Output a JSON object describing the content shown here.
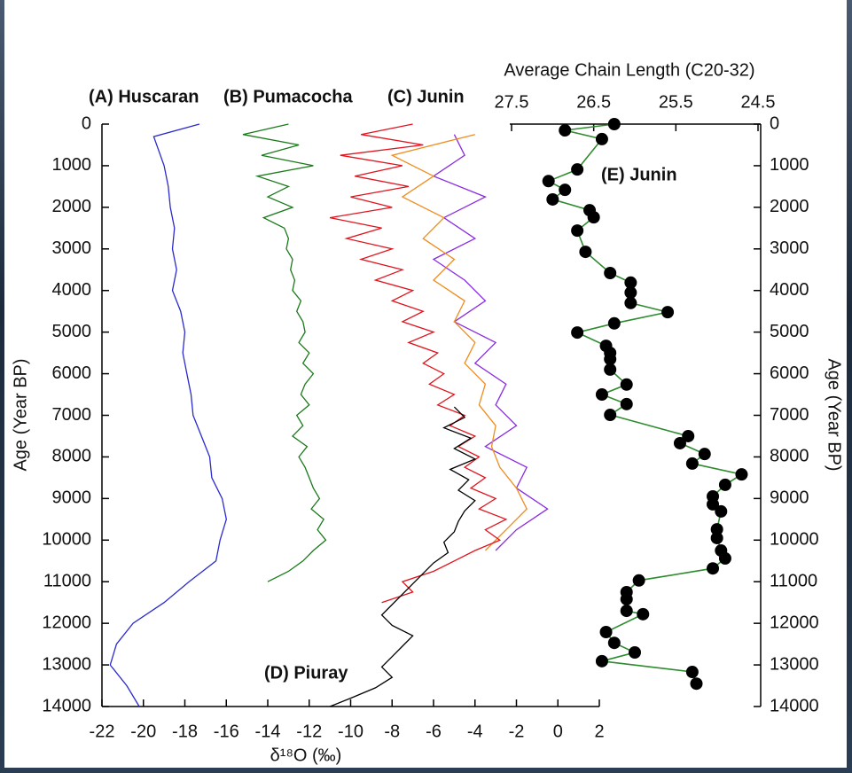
{
  "chart_data": {
    "type": "line",
    "xlabel": "δ¹⁸O (‰)",
    "ylabel": "Age (Year BP)",
    "y2label": "Age (Year BP)",
    "x2label": "Average Chain Length (C20-32)",
    "xlim": [
      -22,
      2
    ],
    "xticks": [
      -22,
      -20,
      -18,
      -16,
      -14,
      -12,
      -10,
      -8,
      -6,
      -4,
      -2,
      0,
      2
    ],
    "x2lim": [
      27.5,
      24.5
    ],
    "x2ticks": [
      27.5,
      26.5,
      25.5,
      24.5
    ],
    "ylim": [
      0,
      14000
    ],
    "yticks": [
      0,
      1000,
      2000,
      3000,
      4000,
      5000,
      6000,
      7000,
      8000,
      9000,
      10000,
      11000,
      12000,
      13000,
      14000
    ],
    "y_reversed": true,
    "series": [
      {
        "name": "(A) Huscaran",
        "color": "#2a2acc",
        "ages": [
          0,
          300,
          1000,
          1500,
          2000,
          2500,
          3000,
          3500,
          4000,
          4500,
          5000,
          5500,
          6000,
          6500,
          7000,
          7500,
          8000,
          8500,
          9000,
          9500,
          10000,
          10500,
          11000,
          11500,
          12000,
          12500,
          13000,
          13500,
          14000
        ],
        "values": [
          -17.3,
          -19.5,
          -19.0,
          -18.8,
          -18.7,
          -18.5,
          -18.6,
          -18.4,
          -18.6,
          -18.2,
          -18.0,
          -18.1,
          -17.9,
          -17.7,
          -17.6,
          -17.2,
          -16.8,
          -16.7,
          -16.2,
          -16.0,
          -16.3,
          -16.5,
          -17.8,
          -19.0,
          -20.5,
          -21.3,
          -21.6,
          -20.8,
          -20.2
        ]
      },
      {
        "name": "(B) Pumacocha",
        "color": "#1a7a1a",
        "ages": [
          0,
          250,
          500,
          750,
          1000,
          1250,
          1500,
          1750,
          2000,
          2250,
          2500,
          2750,
          3000,
          3250,
          3500,
          3750,
          4000,
          4250,
          4500,
          4750,
          5000,
          5250,
          5500,
          5750,
          6000,
          6250,
          6500,
          6750,
          7000,
          7250,
          7500,
          7750,
          8000,
          8250,
          8500,
          8750,
          9000,
          9250,
          9500,
          9750,
          10000,
          10250,
          10500,
          10750,
          11000
        ],
        "values": [
          -13.0,
          -15.2,
          -12.5,
          -14.3,
          -11.8,
          -14.5,
          -13.0,
          -14.0,
          -12.8,
          -14.2,
          -13.2,
          -13.0,
          -13.1,
          -12.8,
          -12.9,
          -12.7,
          -12.8,
          -12.4,
          -12.6,
          -12.3,
          -12.2,
          -12.5,
          -12.0,
          -12.3,
          -11.8,
          -12.2,
          -12.4,
          -12.0,
          -12.6,
          -12.3,
          -12.8,
          -12.1,
          -12.5,
          -12.2,
          -12.0,
          -11.8,
          -11.5,
          -11.9,
          -11.3,
          -11.6,
          -11.2,
          -11.8,
          -12.3,
          -13.0,
          -14.0
        ]
      },
      {
        "color": "#8a2be2",
        "ages": [
          250,
          750,
          1250,
          1750,
          2250,
          2750,
          3250,
          3750,
          4250,
          4750,
          5250,
          5750,
          6250,
          6750,
          7250,
          7750,
          8250,
          8750,
          9250,
          9750,
          10250
        ],
        "values": [
          -5,
          -4.5,
          -6,
          -3.5,
          -5.5,
          -4,
          -6,
          -4.5,
          -3.5,
          -5,
          -3,
          -4,
          -2.5,
          -3,
          -2,
          -3.5,
          -1.5,
          -2,
          -0.5,
          -2,
          -3
        ]
      },
      {
        "color": "#f08c1e",
        "ages": [
          250,
          750,
          1250,
          1750,
          2250,
          2750,
          3250,
          3750,
          4250,
          4750,
          5250,
          5750,
          6250,
          6750,
          7250,
          7750,
          8250,
          8750,
          9250,
          9750,
          10250
        ],
        "values": [
          -4.0,
          -8,
          -6,
          -7.5,
          -5.5,
          -6.5,
          -5.0,
          -6,
          -4.5,
          -5,
          -4,
          -4.5,
          -3.5,
          -3.8,
          -3,
          -3.2,
          -2.8,
          -2,
          -1.5,
          -2.5,
          -3.5
        ]
      },
      {
        "name": "(C) Junin",
        "color": "#e0141e",
        "ages": [
          0,
          250,
          500,
          750,
          1000,
          1250,
          1500,
          1750,
          2000,
          2250,
          2500,
          2750,
          3000,
          3250,
          3500,
          3750,
          4000,
          4250,
          4500,
          4750,
          5000,
          5250,
          5500,
          5750,
          6000,
          6250,
          6500,
          6750,
          7000,
          7250,
          7500,
          7750,
          8000,
          8250,
          8500,
          8750,
          9000,
          9250,
          9500,
          9750,
          10000,
          10250,
          10500,
          10750,
          11000,
          11250,
          11500
        ],
        "values": [
          -7.0,
          -9.5,
          -6.5,
          -10.5,
          -7.5,
          -9.8,
          -7.2,
          -10.0,
          -8.0,
          -11.0,
          -8.5,
          -10.2,
          -8.0,
          -9.5,
          -7.5,
          -8.8,
          -7.0,
          -8.0,
          -6.5,
          -7.5,
          -6.0,
          -7.2,
          -5.8,
          -6.5,
          -5.5,
          -6.2,
          -5.0,
          -5.8,
          -4.5,
          -5.2,
          -4.0,
          -4.8,
          -3.8,
          -4.5,
          -3.5,
          -4.2,
          -3.0,
          -3.8,
          -2.5,
          -3.5,
          -2.8,
          -4.0,
          -5.0,
          -6.0,
          -7.5,
          -7.0,
          -8.5
        ]
      },
      {
        "name": "(D) Piuray",
        "color": "#000000",
        "ages": [
          6800,
          7050,
          7300,
          7550,
          7800,
          8050,
          8300,
          8550,
          8800,
          9050,
          9300,
          9550,
          9800,
          10050,
          10300,
          10550,
          10800,
          11050,
          11300,
          11550,
          11800,
          12050,
          12300,
          12550,
          12800,
          13050,
          13300,
          13550,
          13800,
          14000
        ],
        "values": [
          -5,
          -4.5,
          -5.5,
          -4.2,
          -5.0,
          -4.0,
          -5.2,
          -4.3,
          -4.8,
          -4.0,
          -4.5,
          -4.8,
          -5.0,
          -5.5,
          -5.3,
          -6.0,
          -6.5,
          -7.0,
          -7.5,
          -8.0,
          -8.5,
          -8.0,
          -7.0,
          -7.5,
          -8.0,
          -8.5,
          -8.0,
          -8.8,
          -10.0,
          -11.0
        ]
      },
      {
        "name": "(E) Junin",
        "color": "#2e8b2e",
        "axis": "x2",
        "ages": [
          0,
          150,
          360,
          1090,
          1370,
          1580,
          1810,
          2070,
          2240,
          2560,
          3070,
          3580,
          3810,
          4050,
          4300,
          4520,
          4790,
          5010,
          5330,
          5500,
          5650,
          5900,
          6260,
          6500,
          6730,
          6990,
          7500,
          7670,
          7930,
          8160,
          8420,
          8670,
          8950,
          9140,
          9310,
          9740,
          9950,
          10250,
          10440,
          10680,
          10970,
          11250,
          11420,
          11700,
          11780,
          12210,
          12470,
          12700,
          12910,
          13170,
          13450
        ],
        "values": [
          26.25,
          26.85,
          26.4,
          26.7,
          27.05,
          26.85,
          27.0,
          26.55,
          26.5,
          26.7,
          26.6,
          26.3,
          26.05,
          26.05,
          26.05,
          25.6,
          26.25,
          26.7,
          26.35,
          26.3,
          26.3,
          26.3,
          26.1,
          26.4,
          26.1,
          26.3,
          25.35,
          25.45,
          25.15,
          25.3,
          24.7,
          24.9,
          25.05,
          25.05,
          24.95,
          25.0,
          25.0,
          24.95,
          24.9,
          25.05,
          25.95,
          26.1,
          26.1,
          26.1,
          25.9,
          26.35,
          26.25,
          26.0,
          26.4,
          25.3,
          25.25
        ]
      }
    ]
  }
}
